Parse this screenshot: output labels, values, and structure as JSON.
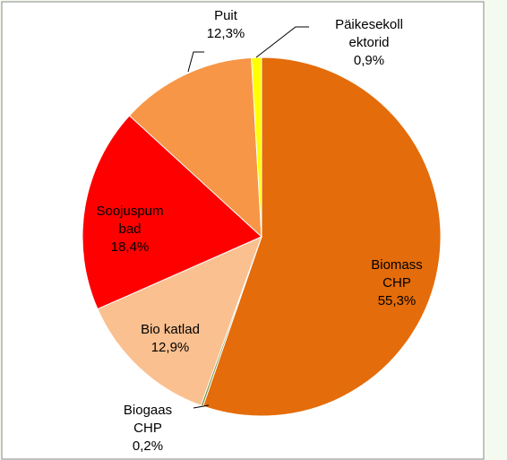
{
  "chart_data": {
    "type": "pie",
    "categories": [
      "Biomass\nCHP",
      "Biogaas\nCHP",
      "Bio katlad",
      "Soojuspum\nbad",
      "Puit",
      "Päikesekoll\nektorid"
    ],
    "values": [
      55.3,
      0.2,
      12.9,
      18.4,
      12.3,
      0.9
    ],
    "value_labels": [
      "55,3%",
      "0,2%",
      "12,9%",
      "18,4%",
      "12,3%",
      "0,9%"
    ],
    "colors": [
      "#e46c0a",
      "#77933c",
      "#fac090",
      "#ff0000",
      "#f79646",
      "#ffff00"
    ]
  }
}
